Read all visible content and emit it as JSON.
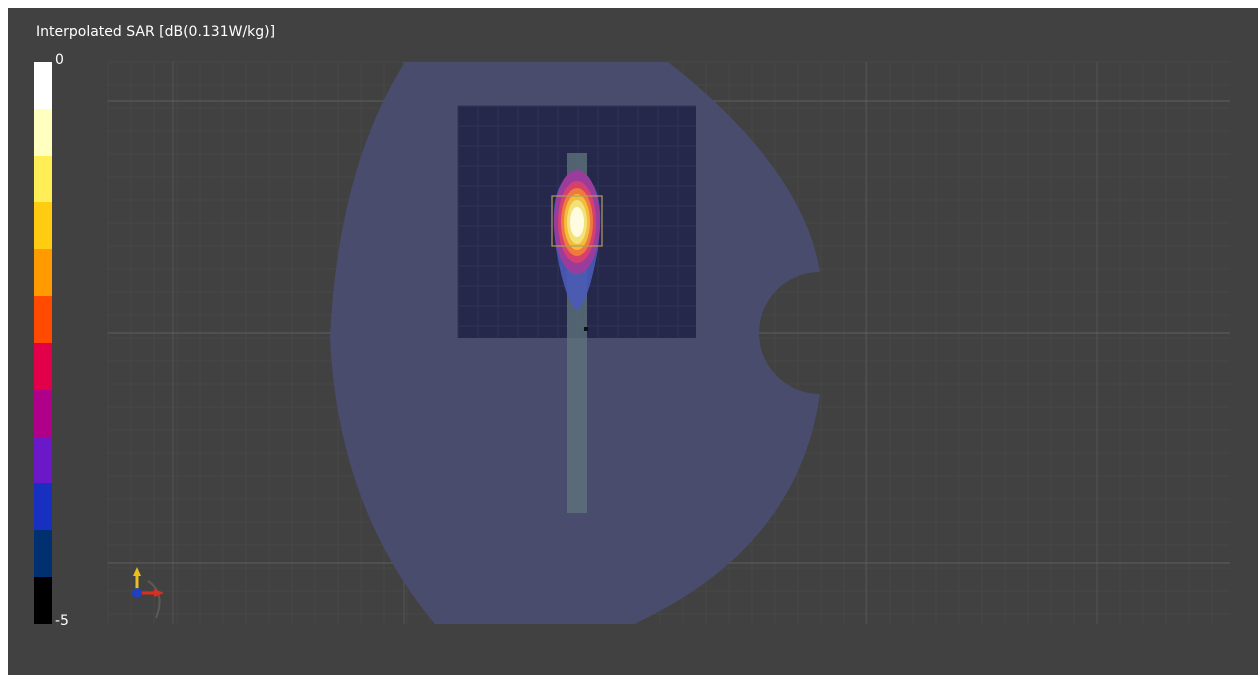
{
  "title": "Interpolated SAR [dB(0.131W/kg)]",
  "colorbar": {
    "max_label": "0",
    "min_label": "-5",
    "colors": [
      "#ffffff",
      "#ffffc0",
      "#ffee55",
      "#ffcc11",
      "#ff9a00",
      "#ff4a00",
      "#e2004a",
      "#b0008a",
      "#6a18c8",
      "#1830c0",
      "#003070",
      "#000000"
    ]
  },
  "scene": {
    "phantom_color": "#4a4c6e",
    "scan_area_color": "#25284a",
    "dipole_color": "#5d727a",
    "hotspot_colors": [
      "#4a5ab8",
      "#9a3c9c",
      "#d6406e",
      "#f07a3c",
      "#f2bc3c",
      "#f2e27a",
      "#fffbe0"
    ]
  },
  "axes": {
    "y_axis_color": "#e8c020",
    "x_axis_color": "#d83020",
    "origin_color": "#2040c0"
  }
}
